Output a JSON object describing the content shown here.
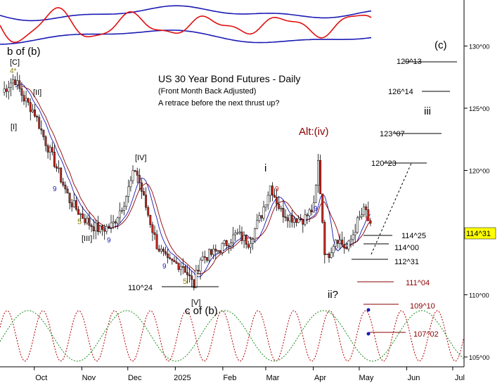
{
  "chart_data": {
    "type": "candlestick",
    "title": "US 30 Year Bond Futures - Daily",
    "subtitle": "(Front Month Back Adjusted)",
    "note": "A retrace before the next thrust up?",
    "x_ticks": [
      "Oct",
      "Nov",
      "Dec",
      "2025",
      "Feb",
      "Mar",
      "Apr",
      "May",
      "Jun",
      "Jul"
    ],
    "y_ticks": [
      "130^00",
      "125^00",
      "120^00",
      "115^00",
      "110^00",
      "105^00"
    ],
    "last_price_label": "114^31",
    "ylim": [
      105,
      131
    ],
    "ohlc_anchors": [
      {
        "x": "2024-09-10",
        "close": 126.3
      },
      {
        "x": "2024-09-18",
        "close": 127.4
      },
      {
        "x": "2024-09-24",
        "close": 125.8
      },
      {
        "x": "2024-10-01",
        "close": 124.7
      },
      {
        "x": "2024-10-08",
        "close": 122.4
      },
      {
        "x": "2024-10-15",
        "close": 120.4
      },
      {
        "x": "2024-10-24",
        "close": 117.6
      },
      {
        "x": "2024-10-31",
        "close": 116.5
      },
      {
        "x": "2024-11-06",
        "close": 115.7
      },
      {
        "x": "2024-11-13",
        "close": 115.2
      },
      {
        "x": "2024-11-21",
        "close": 115.6
      },
      {
        "x": "2024-11-29",
        "close": 117.6
      },
      {
        "x": "2024-12-06",
        "close": 120.2
      },
      {
        "x": "2024-12-13",
        "close": 117.0
      },
      {
        "x": "2024-12-20",
        "close": 114.0
      },
      {
        "x": "2024-12-27",
        "close": 112.6
      },
      {
        "x": "2025-01-06",
        "close": 112.4
      },
      {
        "x": "2025-01-13",
        "close": 110.7
      },
      {
        "x": "2025-01-17",
        "close": 112.9
      },
      {
        "x": "2025-01-27",
        "close": 113.4
      },
      {
        "x": "2025-02-03",
        "close": 114.1
      },
      {
        "x": "2025-02-10",
        "close": 114.9
      },
      {
        "x": "2025-02-18",
        "close": 114.2
      },
      {
        "x": "2025-02-26",
        "close": 116.4
      },
      {
        "x": "2025-03-04",
        "close": 118.8
      },
      {
        "x": "2025-03-11",
        "close": 116.7
      },
      {
        "x": "2025-03-18",
        "close": 116.2
      },
      {
        "x": "2025-03-26",
        "close": 116.1
      },
      {
        "x": "2025-04-02",
        "close": 117.1
      },
      {
        "x": "2025-04-04",
        "close": 121.0
      },
      {
        "x": "2025-04-09",
        "close": 112.7
      },
      {
        "x": "2025-04-16",
        "close": 114.7
      },
      {
        "x": "2025-04-23",
        "close": 113.6
      },
      {
        "x": "2025-04-30",
        "close": 115.9
      },
      {
        "x": "2025-05-05",
        "close": 116.9
      },
      {
        "x": "2025-05-09",
        "close": 115.0
      }
    ],
    "horizontal_levels": [
      {
        "label": "129^13",
        "color": "#000000"
      },
      {
        "label": "126^14",
        "color": "#000000"
      },
      {
        "label": "123^07",
        "color": "#000000"
      },
      {
        "label": "120^23",
        "color": "#000000"
      },
      {
        "label": "114^25",
        "color": "#000000"
      },
      {
        "label": "114^00",
        "color": "#000000"
      },
      {
        "label": "112^31",
        "color": "#000000"
      },
      {
        "label": "111^04",
        "color": "#8b0000"
      },
      {
        "label": "110^24",
        "color": "#000000"
      },
      {
        "label": "109^10",
        "color": "#8b0000"
      },
      {
        "label": "107^02",
        "color": "#8b0000"
      }
    ],
    "wave_labels": [
      {
        "text": "b of (b)",
        "color": "#000000"
      },
      {
        "text": "[C]",
        "color": "#000000"
      },
      {
        "text": "4*",
        "color": "#8b7d00"
      },
      {
        "text": "[II]",
        "color": "#000000"
      },
      {
        "text": "[I]",
        "color": "#000000"
      },
      {
        "text": "[IV]",
        "color": "#000000"
      },
      {
        "text": "[III]",
        "color": "#000000"
      },
      {
        "text": "[V]",
        "color": "#000000"
      },
      {
        "text": "c of (b)",
        "color": "#000000"
      },
      {
        "text": "i",
        "color": "#000000"
      },
      {
        "text": "ii?",
        "color": "#000000"
      },
      {
        "text": "iii",
        "color": "#000000"
      },
      {
        "text": "(c)",
        "color": "#000000"
      },
      {
        "text": "Alt:(iv)",
        "color": "#8b0000"
      }
    ],
    "count_labels": [
      {
        "text": "9",
        "color": "#1a1ab5"
      },
      {
        "text": "5",
        "color": "#8b7d00"
      },
      {
        "text": "9",
        "color": "#1a1ab5"
      },
      {
        "text": "9",
        "color": "#1a1ab5"
      },
      {
        "text": "5",
        "color": "#8b7d00"
      },
      {
        "text": "9",
        "color": "#d62020"
      },
      {
        "text": "9",
        "color": "#1a1ab5"
      },
      {
        "text": "6",
        "color": "#d62020"
      }
    ],
    "colors": {
      "up_candle": "#ffffff",
      "down_candle": "#c8281e",
      "candle_outline": "#000000",
      "ma_fast": "#1a1ab5",
      "ma_slow": "#8b0000",
      "oscillator": "#e01010",
      "bands": "#1a1ab5",
      "cycle_red": "#b00000",
      "cycle_green": "#1a8a1a",
      "last_price_bg": "#ffff00"
    }
  }
}
